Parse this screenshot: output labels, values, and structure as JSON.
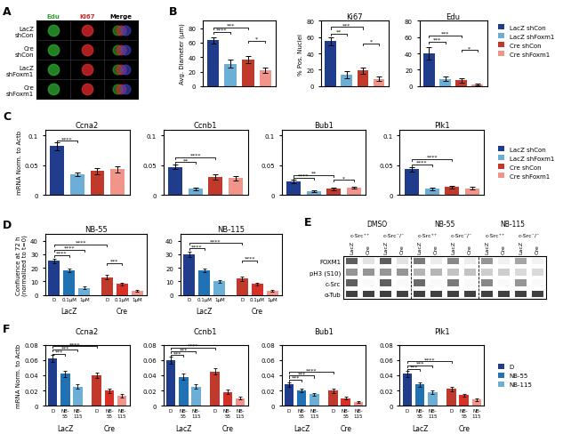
{
  "chart_data": [
    {
      "type": "image",
      "panel": "A",
      "rows": [
        "LacZ\nshCon",
        "Cre\nshCon",
        "LacZ\nshFoxm1",
        "Cre\nshFoxm1"
      ],
      "columns": [
        "Edu",
        "Ki67",
        "Merge"
      ],
      "colors": [
        "#2ca02c",
        "#d62728",
        "#000000"
      ],
      "overlay_colors": [
        "#2ca02c",
        "#d62728",
        "#4444cc"
      ],
      "background": "#000000"
    },
    {
      "type": "bar",
      "panel": "B",
      "ylabel": "Avg. Diameter (μm)",
      "categories": [
        "LacZ shCon",
        "LacZ shFoxm1",
        "Cre shCon",
        "Cre shFoxm1"
      ],
      "values": [
        63,
        31,
        37,
        22
      ],
      "errors": [
        4,
        5,
        5,
        4
      ],
      "colors": [
        "#1f3d8c",
        "#6baed6",
        "#c0392b",
        "#f1948a"
      ],
      "ylim": [
        0,
        90
      ],
      "yticks": [
        0,
        20,
        40,
        60,
        80
      ],
      "tick_labels": "y",
      "brackets": [
        {
          "from": 0,
          "to": 1,
          "y": 72,
          "text": "****"
        },
        {
          "from": 0,
          "to": 2,
          "y": 78,
          "text": "***"
        },
        {
          "from": 2,
          "to": 3,
          "y": 60,
          "text": "*"
        }
      ],
      "legend": "upper left",
      "legend_entries": [
        {
          "name": "LacZ shCon",
          "color": "#1f3d8c"
        },
        {
          "name": "LacZ shFoxm1",
          "color": "#6baed6"
        },
        {
          "name": "Cre shCon",
          "color": "#c0392b"
        },
        {
          "name": "Cre shFoxm1",
          "color": "#f1948a"
        }
      ]
    },
    {
      "type": "bar",
      "title": "Ki67",
      "ylabel": "% Pos. Nuclei",
      "categories": [
        "LacZ shCon",
        "LacZ shFoxm1",
        "Cre shCon",
        "Cre shFoxm1"
      ],
      "values": [
        55,
        14,
        19,
        9
      ],
      "errors": [
        5,
        4,
        4,
        3
      ],
      "colors": [
        "#1f3d8c",
        "#6baed6",
        "#c0392b",
        "#f1948a"
      ],
      "ylim": [
        0,
        80
      ],
      "yticks": [
        0,
        20,
        40,
        60,
        80
      ],
      "tick_labels": "y",
      "brackets": [
        {
          "from": 0,
          "to": 1,
          "y": 62,
          "text": "**"
        },
        {
          "from": 0,
          "to": 2,
          "y": 70,
          "text": "***"
        },
        {
          "from": 2,
          "to": 3,
          "y": 50,
          "text": "*"
        }
      ]
    },
    {
      "type": "bar",
      "title": "Edu",
      "categories": [
        "LacZ shCon",
        "LacZ shFoxm1",
        "Cre shCon",
        "Cre shFoxm1"
      ],
      "values": [
        40,
        9,
        7,
        2
      ],
      "errors": [
        8,
        3,
        3,
        1
      ],
      "colors": [
        "#1f3d8c",
        "#6baed6",
        "#c0392b",
        "#f1948a"
      ],
      "ylim": [
        0,
        80
      ],
      "yticks": [
        0,
        20,
        40,
        60,
        80
      ],
      "tick_labels": "y",
      "brackets": [
        {
          "from": 0,
          "to": 1,
          "y": 52,
          "text": "***"
        },
        {
          "from": 0,
          "to": 2,
          "y": 60,
          "text": "***"
        },
        {
          "from": 2,
          "to": 3,
          "y": 42,
          "text": "*"
        }
      ]
    },
    {
      "type": "bar",
      "panel": "C",
      "title": "Ccna2",
      "ylabel": "mRNA Norm. to Actb",
      "categories": [
        "LacZ shCon",
        "LacZ shFoxm1",
        "Cre shCon",
        "Cre shFoxm1"
      ],
      "values": [
        0.082,
        0.035,
        0.04,
        0.043
      ],
      "errors": [
        0.007,
        0.003,
        0.005,
        0.005
      ],
      "colors": [
        "#1f3d8c",
        "#6baed6",
        "#c0392b",
        "#f1948a"
      ],
      "ylim": [
        0,
        0.11
      ],
      "yticks": [
        0,
        0.05,
        0.1
      ],
      "tick_labels": "y",
      "brackets": [
        {
          "from": 0,
          "to": 1,
          "y": 0.088,
          "text": "****"
        }
      ]
    },
    {
      "type": "bar",
      "title": "Ccnb1",
      "categories": [
        "LacZ shCon",
        "LacZ shFoxm1",
        "Cre shCon",
        "Cre shFoxm1"
      ],
      "values": [
        0.047,
        0.01,
        0.03,
        0.028
      ],
      "errors": [
        0.004,
        0.002,
        0.004,
        0.004
      ],
      "colors": [
        "#1f3d8c",
        "#6baed6",
        "#c0392b",
        "#f1948a"
      ],
      "ylim": [
        0,
        0.11
      ],
      "yticks": [
        0,
        0.05,
        0.1
      ],
      "tick_labels": "y",
      "brackets": [
        {
          "from": 0,
          "to": 1,
          "y": 0.052,
          "text": "**"
        },
        {
          "from": 0,
          "to": 2,
          "y": 0.06,
          "text": "****"
        }
      ]
    },
    {
      "type": "bar",
      "title": "Bub1",
      "categories": [
        "LacZ shCon",
        "LacZ shFoxm1",
        "Cre shCon",
        "Cre shFoxm1"
      ],
      "values": [
        0.022,
        0.006,
        0.01,
        0.012
      ],
      "errors": [
        0.003,
        0.001,
        0.002,
        0.002
      ],
      "colors": [
        "#1f3d8c",
        "#6baed6",
        "#c0392b",
        "#f1948a"
      ],
      "ylim": [
        0,
        0.11
      ],
      "yticks": [
        0,
        0.05,
        0.1
      ],
      "tick_labels": "y",
      "brackets": [
        {
          "from": 0,
          "to": 1,
          "y": 0.026,
          "text": "****"
        },
        {
          "from": 0,
          "to": 2,
          "y": 0.03,
          "text": "**"
        },
        {
          "from": 2,
          "to": 3,
          "y": 0.022,
          "text": "*"
        }
      ]
    },
    {
      "type": "bar",
      "title": "Plk1",
      "categories": [
        "LacZ shCon",
        "LacZ shFoxm1",
        "Cre shCon",
        "Cre shFoxm1"
      ],
      "values": [
        0.043,
        0.01,
        0.013,
        0.011
      ],
      "errors": [
        0.004,
        0.002,
        0.002,
        0.002
      ],
      "colors": [
        "#1f3d8c",
        "#6baed6",
        "#c0392b",
        "#f1948a"
      ],
      "ylim": [
        0,
        0.11
      ],
      "yticks": [
        0,
        0.05,
        0.1
      ],
      "tick_labels": "y",
      "brackets": [
        {
          "from": 0,
          "to": 1,
          "y": 0.048,
          "text": "****"
        },
        {
          "from": 0,
          "to": 2,
          "y": 0.057,
          "text": "****"
        }
      ],
      "legend": "center left",
      "legend_entries": [
        {
          "name": "LacZ shCon",
          "color": "#1f3d8c"
        },
        {
          "name": "LacZ shFoxm1",
          "color": "#6baed6"
        },
        {
          "name": "Cre shCon",
          "color": "#c0392b"
        },
        {
          "name": "Cre shFoxm1",
          "color": "#f1948a"
        }
      ]
    },
    {
      "type": "bar",
      "panel": "D",
      "title": "NB-55",
      "ylabel": "Confluence at 72 h\n(normalized to t=0)",
      "groups": [
        {
          "name": "LacZ",
          "categories": [
            "D",
            "0.1μM",
            "1μM"
          ],
          "values": [
            25,
            18,
            5
          ],
          "errors": [
            1.5,
            1.5,
            1.0
          ],
          "colors": [
            "#1f3d8c",
            "#2171b5",
            "#6baed6"
          ]
        },
        {
          "name": "Cre",
          "categories": [
            "D",
            "0.1μM",
            "1μM"
          ],
          "values": [
            13,
            8,
            3
          ],
          "errors": [
            1.5,
            1.2,
            0.8
          ],
          "colors": [
            "#c0392b",
            "#d73027",
            "#f1948a"
          ]
        }
      ],
      "ylim": [
        0,
        45
      ],
      "yticks": [
        0,
        10,
        20,
        30,
        40
      ],
      "brackets": [
        {
          "from": 0,
          "to": 1,
          "y": 28,
          "text": "****"
        },
        {
          "from": 0,
          "to": 2,
          "y": 32,
          "text": "****"
        },
        {
          "from": 0,
          "to": 3,
          "y": 36,
          "text": "****"
        },
        {
          "from": 3,
          "to": 4,
          "y": 22,
          "text": "***"
        }
      ]
    },
    {
      "type": "bar",
      "title": "NB-115",
      "groups": [
        {
          "name": "LacZ",
          "categories": [
            "D",
            "0.1μM",
            "1μM"
          ],
          "values": [
            30,
            18,
            10
          ],
          "errors": [
            2.0,
            1.5,
            1.0
          ],
          "colors": [
            "#1f3d8c",
            "#2171b5",
            "#6baed6"
          ]
        },
        {
          "name": "Cre",
          "categories": [
            "D",
            "0.1μM",
            "1μM"
          ],
          "values": [
            12,
            8,
            3
          ],
          "errors": [
            1.5,
            1.0,
            0.8
          ],
          "colors": [
            "#c0392b",
            "#d73027",
            "#f1948a"
          ]
        }
      ],
      "ylim": [
        0,
        45
      ],
      "yticks": [
        0,
        10,
        20,
        30,
        40
      ],
      "brackets": [
        {
          "from": 0,
          "to": 1,
          "y": 33,
          "text": "****"
        },
        {
          "from": 0,
          "to": 3,
          "y": 37,
          "text": "****"
        },
        {
          "from": 3,
          "to": 4,
          "y": 24,
          "text": "****"
        }
      ]
    },
    {
      "type": "blot",
      "panel": "E",
      "headers": [
        "DMSO",
        "NB-55",
        "NB-115"
      ],
      "cell_types": [
        "c-Src⁺⁺",
        "c-Src⁻/⁻"
      ],
      "lanes": [
        "LacZ",
        "Cre"
      ],
      "proteins": [
        "FOXM1",
        "pH3 (S10)",
        "c-Src",
        "α-Tub"
      ],
      "band_intensities": {
        "FOXM1": [
          0.7,
          0.2,
          0.7,
          0.2,
          0.6,
          0.15,
          0.55,
          0.15,
          0.5,
          0.12,
          0.45,
          0.1
        ],
        "pH3 (S10)": [
          0.5,
          0.5,
          0.5,
          0.5,
          0.4,
          0.4,
          0.35,
          0.35,
          0.3,
          0.3,
          0.25,
          0.25
        ],
        "c-Src": [
          0.7,
          0.05,
          0.7,
          0.05,
          0.65,
          0.05,
          0.6,
          0.05,
          0.55,
          0.05,
          0.5,
          0.05
        ],
        "α-Tub": [
          0.8,
          0.8,
          0.8,
          0.8,
          0.8,
          0.8,
          0.8,
          0.8,
          0.8,
          0.8,
          0.8,
          0.8
        ]
      }
    },
    {
      "type": "bar",
      "panel": "F",
      "title": "Ccna2",
      "ylabel": "mRNA Norm. to Actb",
      "groups": [
        {
          "name": "LacZ",
          "categories": [
            "D",
            "NB-\n55",
            "NB-\n115"
          ],
          "values": [
            0.062,
            0.042,
            0.025
          ],
          "errors": [
            0.005,
            0.004,
            0.003
          ],
          "colors": [
            "#1f3d8c",
            "#2171b5",
            "#6baed6"
          ]
        },
        {
          "name": "Cre",
          "categories": [
            "D",
            "NB-\n55",
            "NB-\n115"
          ],
          "values": [
            0.04,
            0.02,
            0.013
          ],
          "errors": [
            0.004,
            0.003,
            0.002
          ],
          "colors": [
            "#c0392b",
            "#d73027",
            "#f1948a"
          ]
        }
      ],
      "ylim": [
        0,
        0.08
      ],
      "yticks": [
        0,
        0.02,
        0.04,
        0.06,
        0.08
      ],
      "brackets": [
        {
          "from": 0,
          "to": 1,
          "y": 0.066,
          "text": "***"
        },
        {
          "from": 0,
          "to": 2,
          "y": 0.071,
          "text": "***"
        },
        {
          "from": 0,
          "to": 3,
          "y": 0.076,
          "text": "****"
        }
      ]
    },
    {
      "type": "bar",
      "title": "Ccnb1",
      "groups": [
        {
          "name": "LacZ",
          "categories": [
            "D",
            "NB-\n55",
            "NB-\n115"
          ],
          "values": [
            0.06,
            0.038,
            0.025
          ],
          "errors": [
            0.005,
            0.004,
            0.003
          ],
          "colors": [
            "#1f3d8c",
            "#2171b5",
            "#6baed6"
          ]
        },
        {
          "name": "Cre",
          "categories": [
            "D",
            "NB-\n55",
            "NB-\n115"
          ],
          "values": [
            0.045,
            0.018,
            0.01
          ],
          "errors": [
            0.004,
            0.003,
            0.002
          ],
          "colors": [
            "#c0392b",
            "#d73027",
            "#f1948a"
          ]
        }
      ],
      "ylim": [
        0,
        0.08
      ],
      "yticks": [
        0,
        0.02,
        0.04,
        0.06,
        0.08
      ],
      "brackets": [
        {
          "from": 0,
          "to": 1,
          "y": 0.064,
          "text": "***"
        },
        {
          "from": 0,
          "to": 2,
          "y": 0.069,
          "text": "***"
        },
        {
          "from": 0,
          "to": 3,
          "y": 0.074,
          "text": "****"
        }
      ]
    },
    {
      "type": "bar",
      "title": "Bub1",
      "groups": [
        {
          "name": "LacZ",
          "categories": [
            "D",
            "NB-\n55",
            "NB-\n115"
          ],
          "values": [
            0.028,
            0.02,
            0.015
          ],
          "errors": [
            0.003,
            0.002,
            0.002
          ],
          "colors": [
            "#1f3d8c",
            "#2171b5",
            "#6baed6"
          ]
        },
        {
          "name": "Cre",
          "categories": [
            "D",
            "NB-\n55",
            "NB-\n115"
          ],
          "values": [
            0.02,
            0.01,
            0.005
          ],
          "errors": [
            0.003,
            0.002,
            0.001
          ],
          "colors": [
            "#c0392b",
            "#d73027",
            "#f1948a"
          ]
        }
      ],
      "ylim": [
        0,
        0.08
      ],
      "yticks": [
        0,
        0.02,
        0.04,
        0.06,
        0.08
      ],
      "brackets": [
        {
          "from": 0,
          "to": 1,
          "y": 0.032,
          "text": "***"
        },
        {
          "from": 0,
          "to": 2,
          "y": 0.037,
          "text": "***"
        },
        {
          "from": 0,
          "to": 3,
          "y": 0.042,
          "text": "****"
        }
      ]
    },
    {
      "type": "bar",
      "title": "Plk1",
      "groups": [
        {
          "name": "LacZ",
          "categories": [
            "D",
            "NB-\n55",
            "NB-\n115"
          ],
          "values": [
            0.042,
            0.028,
            0.018
          ],
          "errors": [
            0.004,
            0.003,
            0.002
          ],
          "colors": [
            "#1f3d8c",
            "#2171b5",
            "#6baed6"
          ]
        },
        {
          "name": "Cre",
          "categories": [
            "D",
            "NB-\n55",
            "NB-\n115"
          ],
          "values": [
            0.022,
            0.014,
            0.008
          ],
          "errors": [
            0.003,
            0.002,
            0.002
          ],
          "colors": [
            "#c0392b",
            "#d73027",
            "#f1948a"
          ]
        }
      ],
      "ylim": [
        0,
        0.08
      ],
      "yticks": [
        0,
        0.02,
        0.04,
        0.06,
        0.08
      ],
      "brackets": [
        {
          "from": 0,
          "to": 1,
          "y": 0.046,
          "text": "***"
        },
        {
          "from": 0,
          "to": 2,
          "y": 0.051,
          "text": "***"
        },
        {
          "from": 0,
          "to": 3,
          "y": 0.056,
          "text": "****"
        }
      ],
      "legend": "center left",
      "legend_entries": [
        {
          "name": "D",
          "color": "#1f3d8c"
        },
        {
          "name": "NB-55",
          "color": "#2171b5"
        },
        {
          "name": "NB-115",
          "color": "#6baed6"
        }
      ]
    }
  ]
}
